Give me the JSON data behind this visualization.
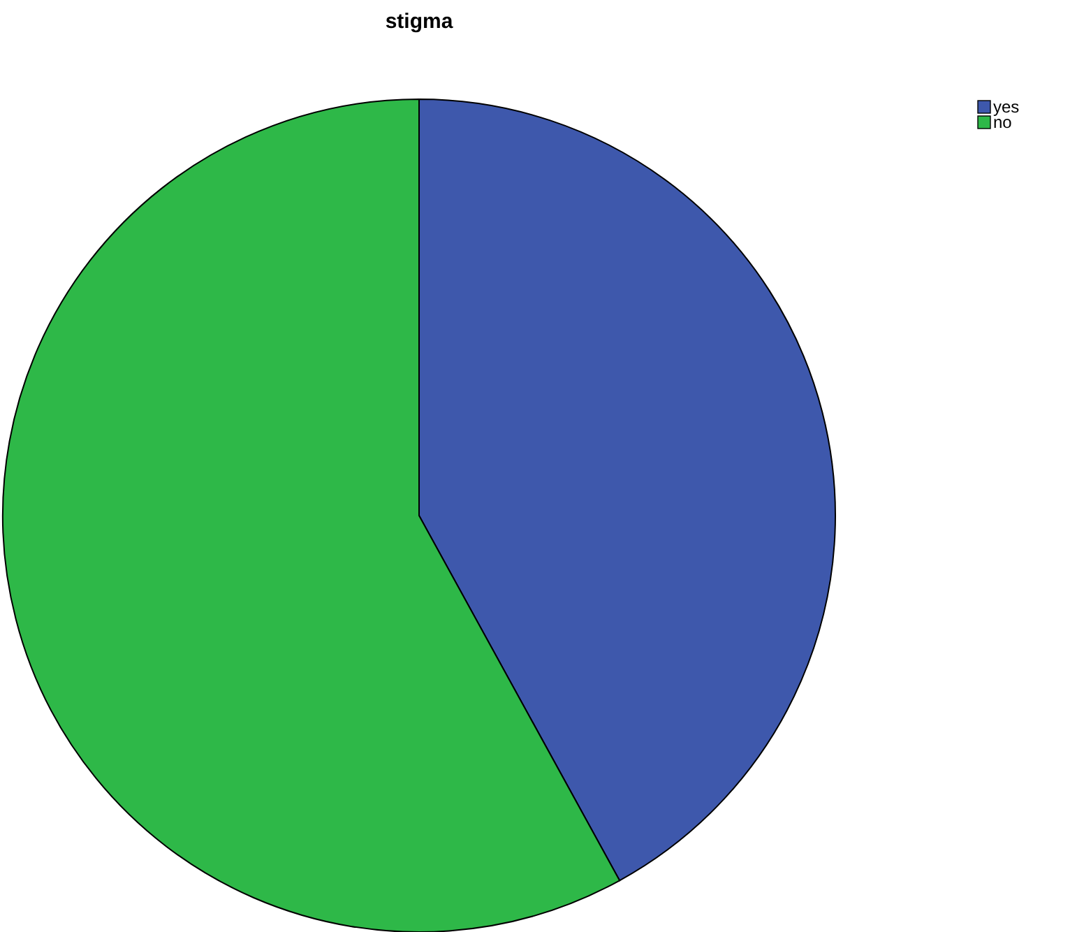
{
  "chart_data": {
    "type": "pie",
    "title": "stigma",
    "categories": [
      "yes",
      "no"
    ],
    "values": [
      42,
      58
    ],
    "colors": [
      "#3e58ac",
      "#2eb848"
    ],
    "legend": "top right"
  }
}
